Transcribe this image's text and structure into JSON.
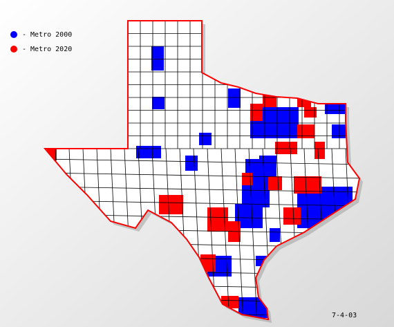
{
  "legend": [
    {
      "name": "- Metro 2000",
      "color": "#0000ff"
    },
    {
      "name": "- Metro 2020",
      "color": "#ff0000"
    }
  ],
  "date": "7-4-03"
}
